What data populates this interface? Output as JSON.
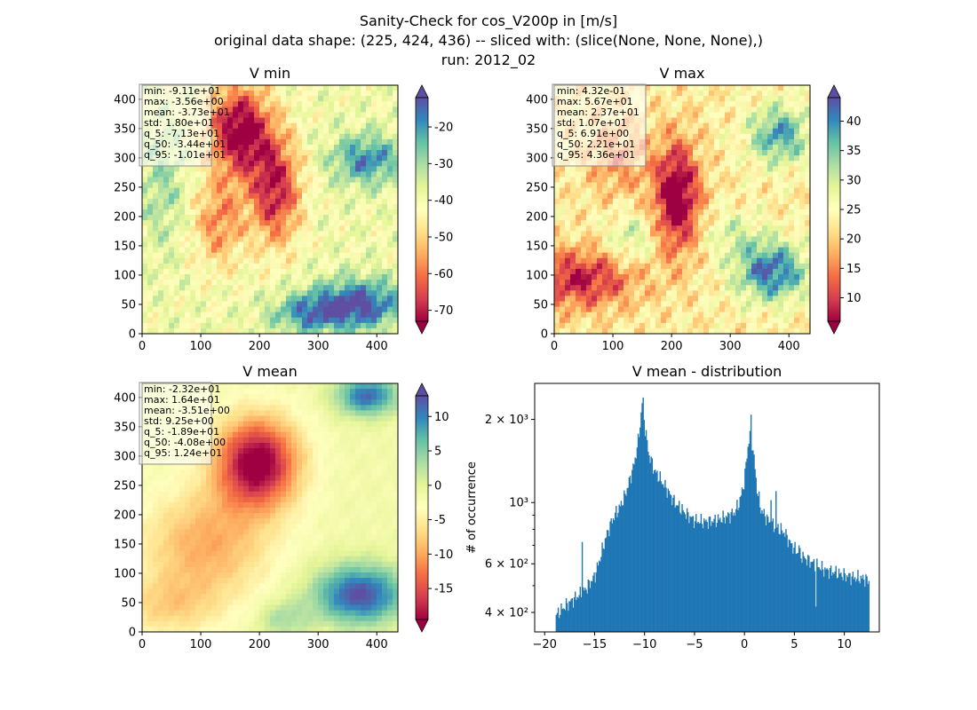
{
  "figure": {
    "suptitle": [
      "Sanity-Check for cos_V200p in [m/s]",
      "original data shape: (225, 424, 436) -- sliced with: (slice(None, None, None),)",
      "run: 2012_02"
    ]
  },
  "colors": {
    "spectral": [
      "#9e0142",
      "#d53e4f",
      "#f46d43",
      "#fdae61",
      "#fee08b",
      "#ffffbf",
      "#e6f598",
      "#abdda4",
      "#66c2a5",
      "#3288bd",
      "#5e4fa2"
    ],
    "hist_bar": "#1f77b4"
  },
  "chart_data": [
    {
      "type": "heatmap",
      "title": "V min",
      "x_ticks": [
        "0",
        "100",
        "200",
        "300",
        "400"
      ],
      "y_ticks": [
        "0",
        "50",
        "100",
        "150",
        "200",
        "250",
        "300",
        "350",
        "400"
      ],
      "xlim": [
        0,
        436
      ],
      "ylim": [
        0,
        424
      ],
      "colorbar": {
        "range": [
          -73,
          -12
        ],
        "ticks": [
          "-20",
          "-30",
          "-40",
          "-50",
          "-60",
          "-70"
        ],
        "tick_values": [
          -20,
          -30,
          -40,
          -50,
          -60,
          -70
        ],
        "extend": "both"
      },
      "stats": [
        "min: -9.11e+01",
        "max: -3.56e+00",
        "mean: -3.73e+01",
        "std: 1.80e+01",
        "q_5: -7.13e+01",
        "q_50: -3.44e+01",
        "q_95: -1.01e+01"
      ]
    },
    {
      "type": "heatmap",
      "title": "V max",
      "x_ticks": [
        "0",
        "100",
        "200",
        "300",
        "400"
      ],
      "y_ticks": [
        "0",
        "50",
        "100",
        "150",
        "200",
        "250",
        "300",
        "350",
        "400"
      ],
      "xlim": [
        0,
        436
      ],
      "ylim": [
        0,
        424
      ],
      "colorbar": {
        "range": [
          6,
          44
        ],
        "ticks": [
          "40",
          "35",
          "30",
          "25",
          "20",
          "15",
          "10"
        ],
        "tick_values": [
          40,
          35,
          30,
          25,
          20,
          15,
          10
        ],
        "extend": "both"
      },
      "stats": [
        "min: 4.32e-01",
        "max: 5.67e+01",
        "mean: 2.37e+01",
        "std: 1.07e+01",
        "q_5: 6.91e+00",
        "q_50: 2.21e+01",
        "q_95: 4.36e+01"
      ]
    },
    {
      "type": "heatmap",
      "title": "V mean",
      "x_ticks": [
        "0",
        "100",
        "200",
        "300",
        "400"
      ],
      "y_ticks": [
        "0",
        "50",
        "100",
        "150",
        "200",
        "250",
        "300",
        "350",
        "400"
      ],
      "xlim": [
        0,
        436
      ],
      "ylim": [
        0,
        424
      ],
      "colorbar": {
        "range": [
          -19.5,
          13
        ],
        "ticks": [
          "10",
          "5",
          "0",
          "-5",
          "-10",
          "-15"
        ],
        "tick_values": [
          10,
          5,
          0,
          -5,
          -10,
          -15
        ],
        "extend": "both"
      },
      "stats": [
        "min: -2.32e+01",
        "max: 1.64e+01",
        "mean: -3.51e+00",
        "std: 9.25e+00",
        "q_5: -1.89e+01",
        "q_50: -4.08e+00",
        "q_95: 1.24e+01"
      ]
    },
    {
      "type": "bar",
      "title": "V mean - distribution",
      "ylabel": "# of occurrence",
      "y_scale": "log",
      "xlim": [
        -21,
        13.5
      ],
      "ylim": [
        340,
        2700
      ],
      "x_ticks": [
        "−20",
        "−15",
        "−10",
        "−5",
        "0",
        "5",
        "10"
      ],
      "x_tick_values": [
        -20,
        -15,
        -10,
        -5,
        0,
        5,
        10
      ],
      "y_ticks": [
        "2 × 10³",
        "10³",
        "6 × 10²",
        "4 × 10²"
      ],
      "y_tick_values": [
        2000,
        1000,
        600,
        400
      ],
      "bin_start": -18.9,
      "bin_width": 0.1,
      "anchors": [
        [
          -18.9,
          390
        ],
        [
          -18.0,
          420
        ],
        [
          -17.0,
          450
        ],
        [
          -16.0,
          480
        ],
        [
          -15.0,
          540
        ],
        [
          -14.5,
          620
        ],
        [
          -14.0,
          720
        ],
        [
          -13.5,
          820
        ],
        [
          -13.0,
          900
        ],
        [
          -12.5,
          960
        ],
        [
          -12.0,
          1050
        ],
        [
          -11.5,
          1200
        ],
        [
          -11.0,
          1400
        ],
        [
          -10.6,
          1700
        ],
        [
          -10.4,
          2000
        ],
        [
          -10.2,
          2400
        ],
        [
          -10.0,
          1900
        ],
        [
          -9.6,
          1500
        ],
        [
          -9.0,
          1300
        ],
        [
          -8.0,
          1150
        ],
        [
          -7.0,
          1000
        ],
        [
          -6.0,
          920
        ],
        [
          -5.0,
          860
        ],
        [
          -4.0,
          850
        ],
        [
          -3.0,
          860
        ],
        [
          -2.0,
          880
        ],
        [
          -1.0,
          920
        ],
        [
          -0.5,
          1000
        ],
        [
          0.0,
          1200
        ],
        [
          0.3,
          1550
        ],
        [
          0.6,
          1800
        ],
        [
          0.9,
          1500
        ],
        [
          1.2,
          1150
        ],
        [
          1.6,
          950
        ],
        [
          2.0,
          900
        ],
        [
          2.5,
          850
        ],
        [
          3.0,
          820
        ],
        [
          3.5,
          800
        ],
        [
          4.0,
          780
        ],
        [
          4.5,
          720
        ],
        [
          5.0,
          680
        ],
        [
          5.5,
          650
        ],
        [
          6.0,
          630
        ],
        [
          7.0,
          600
        ],
        [
          8.0,
          570
        ],
        [
          9.0,
          560
        ],
        [
          10.0,
          545
        ],
        [
          11.0,
          535
        ],
        [
          12.0,
          530
        ],
        [
          12.4,
          520
        ]
      ],
      "spikes": [
        [
          -10.2,
          2400
        ],
        [
          0.6,
          2080
        ],
        [
          -16.3,
          720
        ],
        [
          3.1,
          1100
        ],
        [
          7.1,
          420
        ],
        [
          2.6,
          1020
        ],
        [
          5.4,
          700
        ]
      ]
    }
  ]
}
